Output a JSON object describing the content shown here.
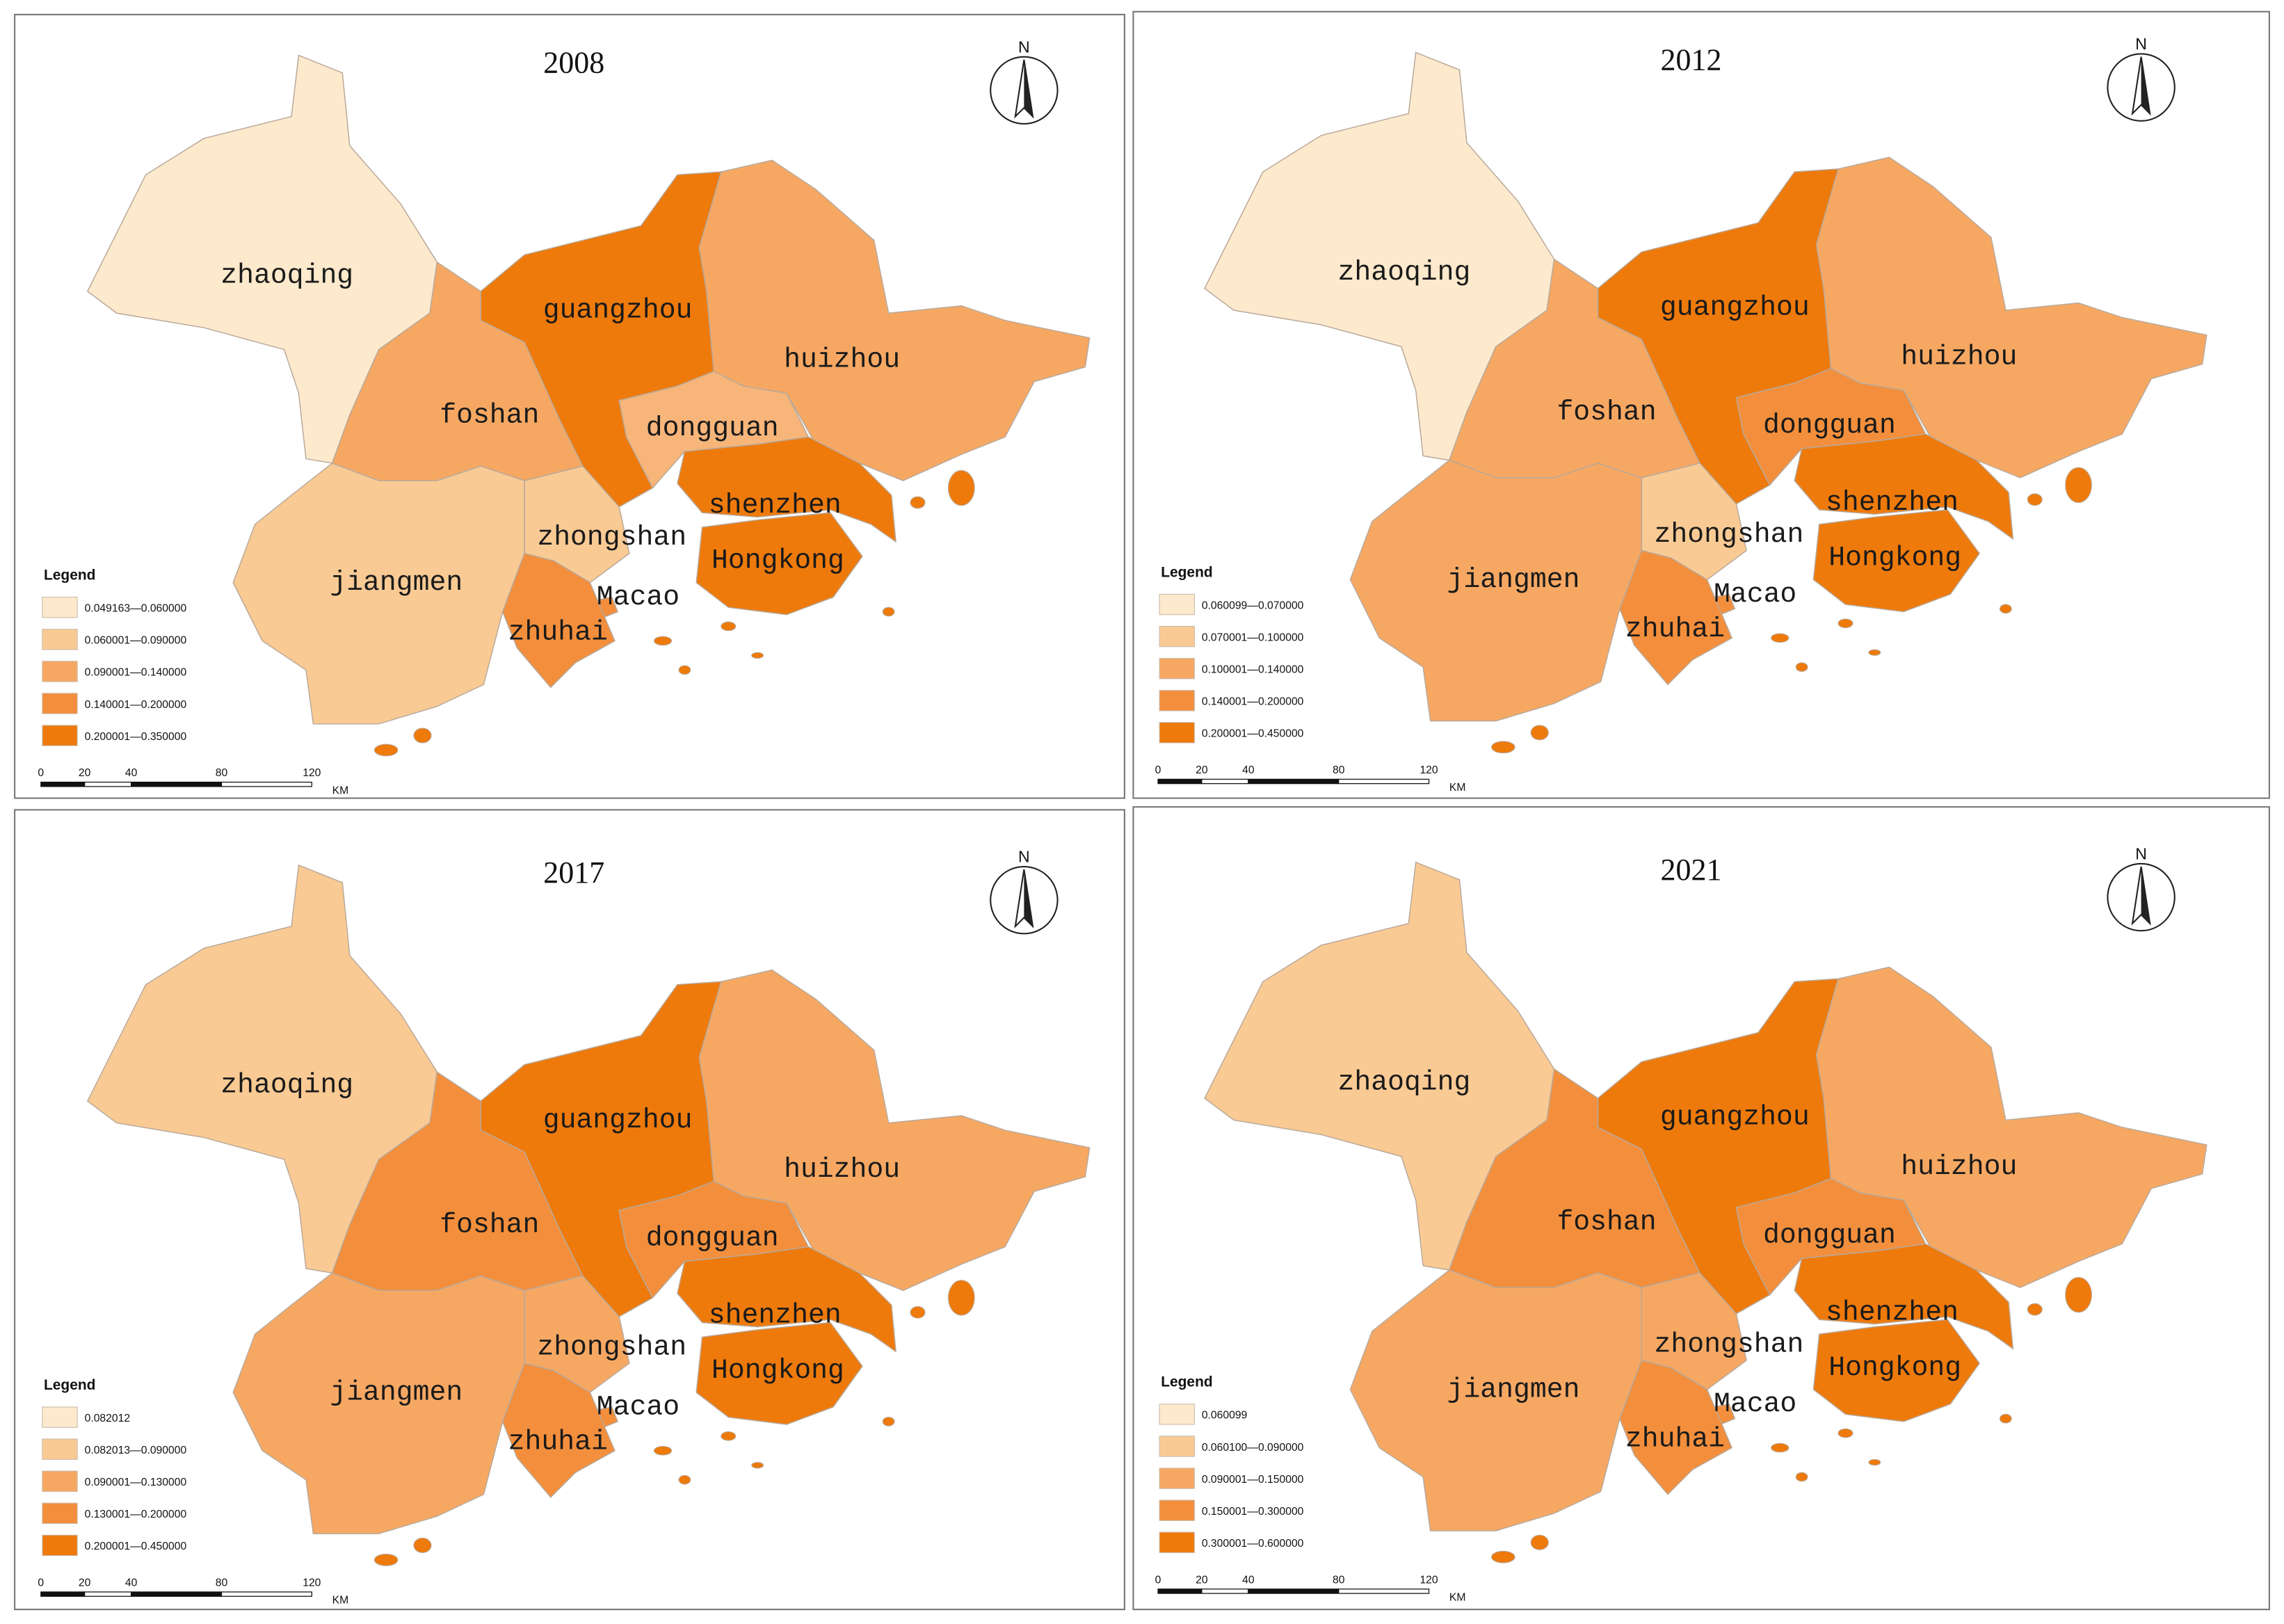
{
  "panels": [
    {
      "title": "2008",
      "legend_title": "Legend",
      "north": "N",
      "scale_labels": [
        "0",
        "20",
        "40",
        "80",
        "120"
      ],
      "scale_unit": "KM",
      "legend": [
        {
          "label": "0.049163—0.060000",
          "color": "#fde9cc"
        },
        {
          "label": "0.060001—0.090000",
          "color": "#f9ca94"
        },
        {
          "label": "0.090001—0.140000",
          "color": "#f6a863"
        },
        {
          "label": "0.140001—0.200000",
          "color": "#f38f3c"
        },
        {
          "label": "0.200001—0.350000",
          "color": "#ee7a0b"
        }
      ],
      "regions": [
        {
          "name": "zhaoqing",
          "color": "#fde9cc"
        },
        {
          "name": "guangzhou",
          "color": "#ee7a0b"
        },
        {
          "name": "huizhou",
          "color": "#f6a863"
        },
        {
          "name": "foshan",
          "color": "#f6a863"
        },
        {
          "name": "dongguan",
          "color": "#f7b57a"
        },
        {
          "name": "shenzhen",
          "color": "#ee7a0b"
        },
        {
          "name": "zhongshan",
          "color": "#f9ca94"
        },
        {
          "name": "Hongkong",
          "color": "#ee7a0b"
        },
        {
          "name": "jiangmen",
          "color": "#f9ca94"
        },
        {
          "name": "Macao",
          "color": "#f38f3c"
        },
        {
          "name": "zhuhai",
          "color": "#f38f3c"
        }
      ]
    },
    {
      "title": "2012",
      "legend_title": "Legend",
      "north": "N",
      "scale_labels": [
        "0",
        "20",
        "40",
        "80",
        "120"
      ],
      "scale_unit": "KM",
      "legend": [
        {
          "label": "0.060099—0.070000",
          "color": "#fde9cc"
        },
        {
          "label": "0.070001—0.100000",
          "color": "#f9ca94"
        },
        {
          "label": "0.100001—0.140000",
          "color": "#f6a863"
        },
        {
          "label": "0.140001—0.200000",
          "color": "#f38f3c"
        },
        {
          "label": "0.200001—0.450000",
          "color": "#ee7a0b"
        }
      ],
      "regions": [
        {
          "name": "zhaoqing",
          "color": "#fde9cc"
        },
        {
          "name": "guangzhou",
          "color": "#ee7a0b"
        },
        {
          "name": "huizhou",
          "color": "#f6a863"
        },
        {
          "name": "foshan",
          "color": "#f6a863"
        },
        {
          "name": "dongguan",
          "color": "#f38f3c"
        },
        {
          "name": "shenzhen",
          "color": "#ee7a0b"
        },
        {
          "name": "zhongshan",
          "color": "#f9ca94"
        },
        {
          "name": "Hongkong",
          "color": "#ee7a0b"
        },
        {
          "name": "jiangmen",
          "color": "#f6a863"
        },
        {
          "name": "Macao",
          "color": "#f38f3c"
        },
        {
          "name": "zhuhai",
          "color": "#f38f3c"
        }
      ]
    },
    {
      "title": "2017",
      "legend_title": "Legend",
      "north": "N",
      "scale_labels": [
        "0",
        "20",
        "40",
        "80",
        "120"
      ],
      "scale_unit": "KM",
      "legend": [
        {
          "label": "0.082012",
          "color": "#fde9cc"
        },
        {
          "label": "0.082013—0.090000",
          "color": "#f9ca94"
        },
        {
          "label": "0.090001—0.130000",
          "color": "#f6a863"
        },
        {
          "label": "0.130001—0.200000",
          "color": "#f38f3c"
        },
        {
          "label": "0.200001—0.450000",
          "color": "#ee7a0b"
        }
      ],
      "regions": [
        {
          "name": "zhaoqing",
          "color": "#f9ca94"
        },
        {
          "name": "guangzhou",
          "color": "#ee7a0b"
        },
        {
          "name": "huizhou",
          "color": "#f6a863"
        },
        {
          "name": "foshan",
          "color": "#f38f3c"
        },
        {
          "name": "dongguan",
          "color": "#f38f3c"
        },
        {
          "name": "shenzhen",
          "color": "#ee7a0b"
        },
        {
          "name": "zhongshan",
          "color": "#f6a863"
        },
        {
          "name": "Hongkong",
          "color": "#ee7a0b"
        },
        {
          "name": "jiangmen",
          "color": "#f6a863"
        },
        {
          "name": "Macao",
          "color": "#f38f3c"
        },
        {
          "name": "zhuhai",
          "color": "#f38f3c"
        }
      ]
    },
    {
      "title": "2021",
      "legend_title": "Legend",
      "north": "N",
      "scale_labels": [
        "0",
        "20",
        "40",
        "80",
        "120"
      ],
      "scale_unit": "KM",
      "legend": [
        {
          "label": "0.060099",
          "color": "#fde9cc"
        },
        {
          "label": "0.060100—0.090000",
          "color": "#f9ca94"
        },
        {
          "label": "0.090001—0.150000",
          "color": "#f6a863"
        },
        {
          "label": "0.150001—0.300000",
          "color": "#f38f3c"
        },
        {
          "label": "0.300001—0.600000",
          "color": "#ee7a0b"
        }
      ],
      "regions": [
        {
          "name": "zhaoqing",
          "color": "#f9ca94"
        },
        {
          "name": "guangzhou",
          "color": "#ee7a0b"
        },
        {
          "name": "huizhou",
          "color": "#f6a863"
        },
        {
          "name": "foshan",
          "color": "#f38f3c"
        },
        {
          "name": "dongguan",
          "color": "#f38f3c"
        },
        {
          "name": "shenzhen",
          "color": "#ee7a0b"
        },
        {
          "name": "zhongshan",
          "color": "#f6a863"
        },
        {
          "name": "Hongkong",
          "color": "#ee7a0b"
        },
        {
          "name": "jiangmen",
          "color": "#f6a863"
        },
        {
          "name": "Macao",
          "color": "#f38f3c"
        },
        {
          "name": "zhuhai",
          "color": "#f38f3c"
        }
      ]
    }
  ]
}
